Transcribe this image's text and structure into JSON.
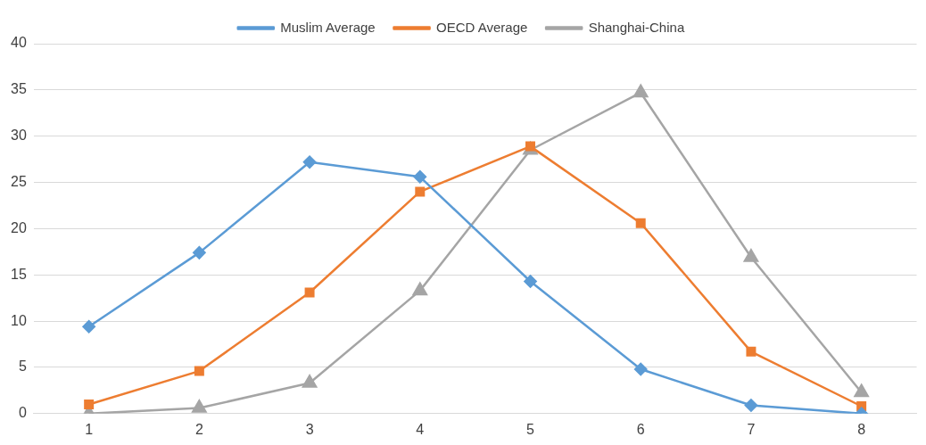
{
  "chart_data": {
    "type": "line",
    "categories": [
      "1",
      "2",
      "3",
      "4",
      "5",
      "6",
      "7",
      "8"
    ],
    "series": [
      {
        "name": "Muslim Average",
        "color": "#5b9bd5",
        "marker": "diamond",
        "values": [
          9.4,
          17.4,
          27.2,
          25.6,
          14.3,
          4.8,
          0.9,
          0.0
        ]
      },
      {
        "name": "OECD Average",
        "color": "#ed7d31",
        "marker": "square",
        "values": [
          1.0,
          4.6,
          13.1,
          24.0,
          28.9,
          20.6,
          6.7,
          0.8
        ]
      },
      {
        "name": "Shanghai-China",
        "color": "#a5a5a5",
        "marker": "triangle",
        "values": [
          0.0,
          0.6,
          3.3,
          13.3,
          28.5,
          34.7,
          16.9,
          2.3
        ]
      }
    ],
    "ylim": [
      0,
      40
    ],
    "yticks": [
      0,
      5,
      10,
      15,
      20,
      25,
      30,
      35,
      40
    ],
    "grid": "y",
    "legend": "top"
  }
}
